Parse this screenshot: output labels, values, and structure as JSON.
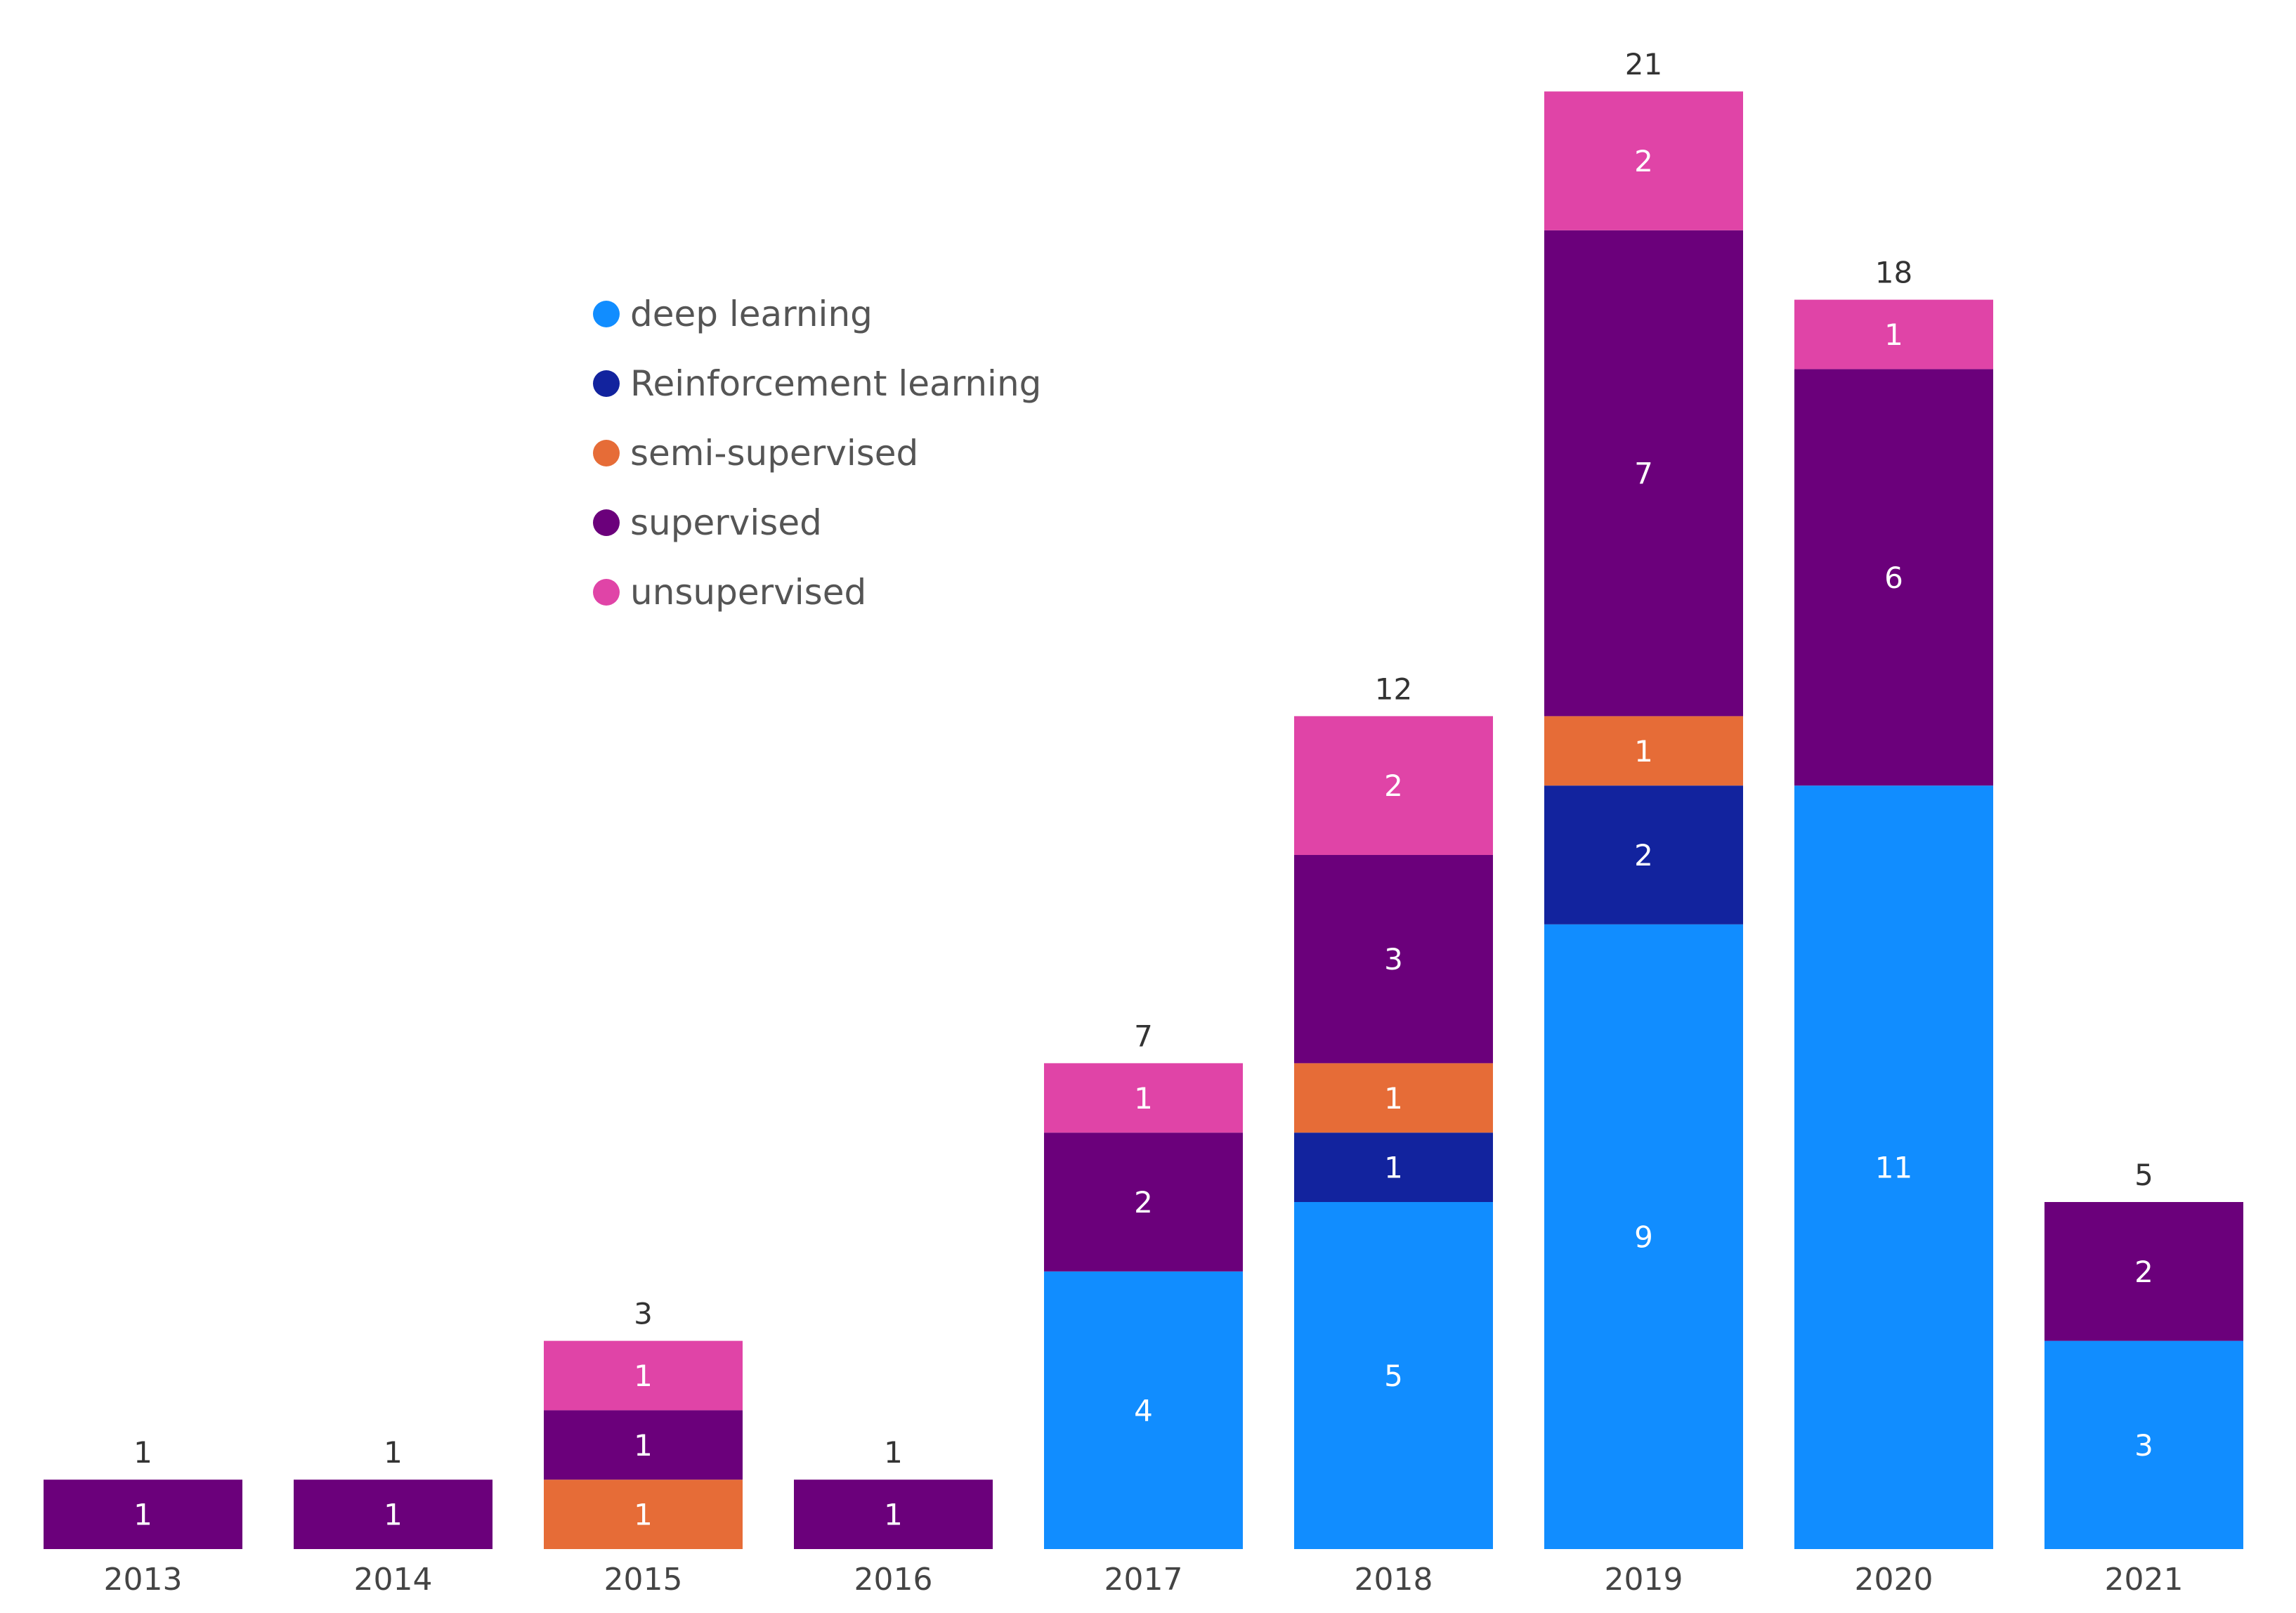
{
  "chart_data": {
    "type": "bar",
    "stacked": true,
    "title": "",
    "xlabel": "",
    "ylabel": "",
    "grid": false,
    "legend_position": "top-left",
    "categories": [
      "2013",
      "2014",
      "2015",
      "2016",
      "2017",
      "2018",
      "2019",
      "2020",
      "2021"
    ],
    "series": [
      {
        "name": "deep learning",
        "color": "#118DFF",
        "values": [
          0,
          0,
          0,
          0,
          4,
          5,
          9,
          11,
          3
        ]
      },
      {
        "name": "Reinforcement learning",
        "color": "#12239E",
        "values": [
          0,
          0,
          0,
          0,
          0,
          1,
          2,
          0,
          0
        ]
      },
      {
        "name": "semi-supervised",
        "color": "#E66C37",
        "values": [
          0,
          0,
          1,
          0,
          0,
          1,
          1,
          0,
          0
        ]
      },
      {
        "name": "supervised",
        "color": "#6B007B",
        "values": [
          1,
          1,
          1,
          1,
          2,
          3,
          7,
          6,
          2
        ]
      },
      {
        "name": "unsupervised",
        "color": "#E044A7",
        "values": [
          0,
          0,
          1,
          0,
          1,
          2,
          2,
          1,
          0
        ]
      }
    ],
    "totals": [
      1,
      1,
      3,
      1,
      7,
      12,
      21,
      18,
      5
    ],
    "ylim": [
      0,
      21
    ]
  }
}
